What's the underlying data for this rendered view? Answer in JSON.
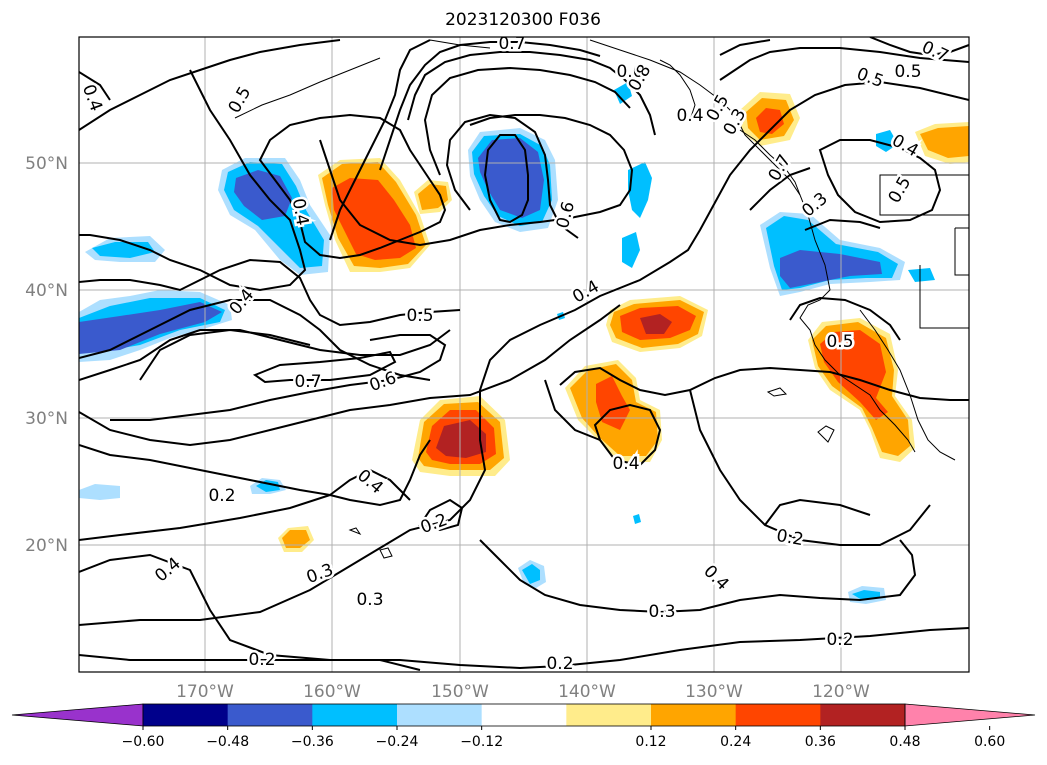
{
  "title": "2023120300 F036",
  "latitude_labels": [
    "20°N",
    "30°N",
    "40°N",
    "50°N"
  ],
  "longitude_labels": [
    "170°W",
    "160°W",
    "150°W",
    "140°W",
    "130°W",
    "120°W"
  ],
  "contour_labels": [
    "0.7",
    "0.6",
    "0.5",
    "0.4",
    "0.8",
    "0.5",
    "0.4",
    "0.6",
    "0.5",
    "0.4",
    "0.4",
    "0.3",
    "0.5",
    "0.5",
    "0.4",
    "0.6",
    "0.7",
    "0.6",
    "0.4",
    "0.4",
    "0.2",
    "0.2",
    "0.4",
    "0.4",
    "0.3",
    "0.3",
    "0.2",
    "0.2",
    "0.4",
    "0.2",
    "0.3",
    "0.2"
  ],
  "colorbar": {
    "ticks": [
      "−0.60",
      "−0.48",
      "−0.36",
      "−0.24",
      "−0.12",
      "0.12",
      "0.24",
      "0.36",
      "0.48",
      "0.60"
    ],
    "colors": [
      "#9932CC",
      "#00008B",
      "#3A5ACD",
      "#00BFFF",
      "#ADDFFF",
      "#FFFFFF",
      "#FFEC8B",
      "#FFA500",
      "#FF4500",
      "#B22222",
      "#FF82AB"
    ]
  },
  "shading_colors": {
    "blue_light": "#ADDFFF",
    "blue_mid": "#00BFFF",
    "blue_dark": "#3A5ACD",
    "yellow": "#FFEC8B",
    "orange": "#FFA500",
    "red": "#FF4500",
    "darkred": "#B22222"
  }
}
